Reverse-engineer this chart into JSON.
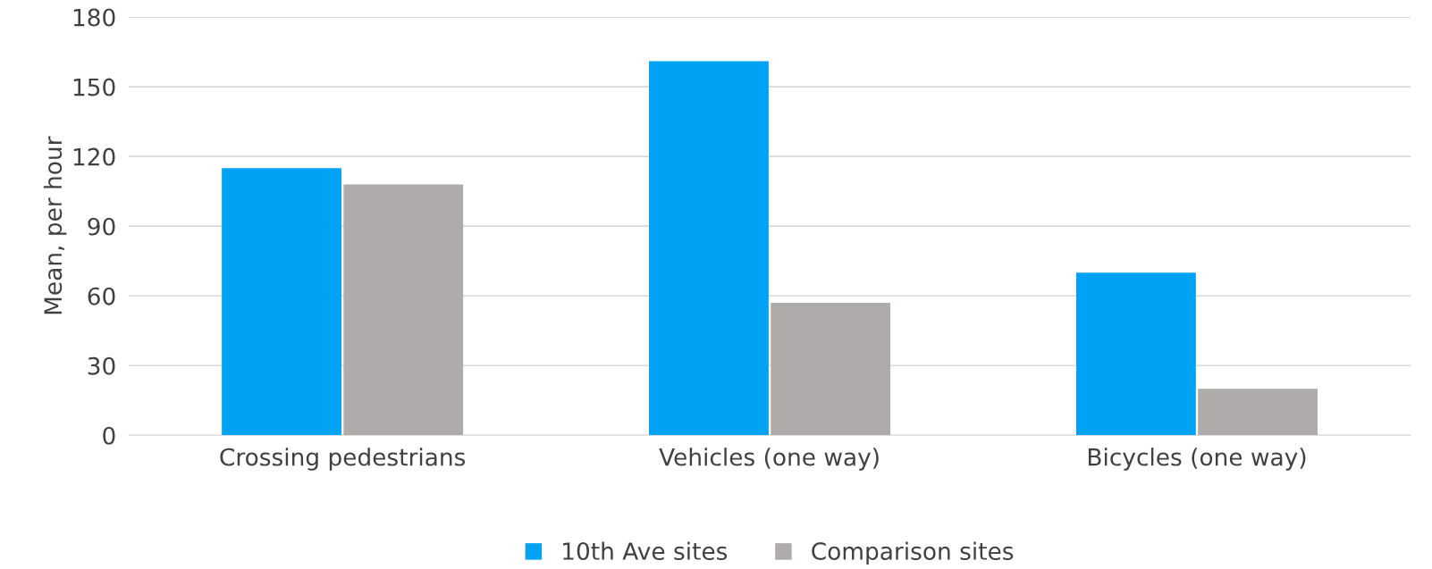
{
  "chart_data": {
    "type": "bar",
    "ylabel": "Mean, per hour",
    "categories": [
      "Crossing pedestrians",
      "Vehicles (one way)",
      "Bicycles (one way)"
    ],
    "series": [
      {
        "name": "10th Ave sites",
        "color": "#00a2f4",
        "values": [
          115,
          161,
          70
        ]
      },
      {
        "name": "Comparison sites",
        "color": "#aeabaa",
        "values": [
          108,
          57,
          20
        ]
      }
    ],
    "ylim": [
      0,
      180
    ],
    "yticks": [
      0,
      30,
      60,
      90,
      120,
      150,
      180
    ],
    "grid": "y",
    "legend": "bottom"
  }
}
